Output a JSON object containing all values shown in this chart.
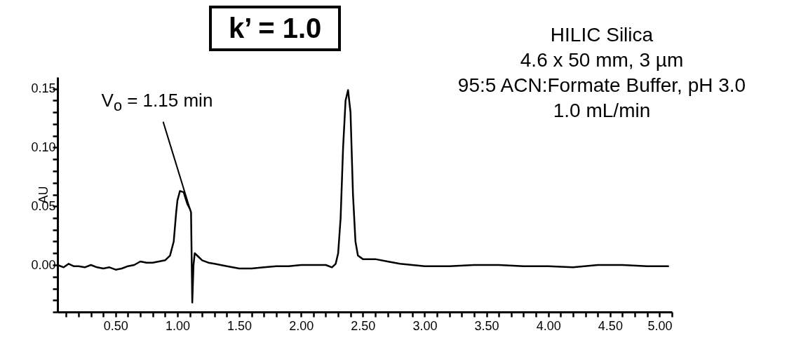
{
  "chart_data": {
    "type": "line",
    "ylabel": "AU",
    "x": [
      0.03,
      0.08,
      0.12,
      0.16,
      0.2,
      0.25,
      0.3,
      0.35,
      0.4,
      0.45,
      0.5,
      0.55,
      0.6,
      0.65,
      0.7,
      0.75,
      0.8,
      0.85,
      0.9,
      0.94,
      0.97,
      0.99,
      1.0,
      1.02,
      1.05,
      1.08,
      1.1,
      1.11,
      1.12,
      1.13,
      1.14,
      1.17,
      1.2,
      1.25,
      1.3,
      1.4,
      1.5,
      1.6,
      1.7,
      1.8,
      1.9,
      2.0,
      2.1,
      2.2,
      2.25,
      2.28,
      2.3,
      2.32,
      2.34,
      2.36,
      2.38,
      2.4,
      2.42,
      2.44,
      2.46,
      2.5,
      2.6,
      2.7,
      2.8,
      2.9,
      3.0,
      3.2,
      3.4,
      3.6,
      3.8,
      4.0,
      4.2,
      4.4,
      4.6,
      4.8,
      4.97
    ],
    "series": [
      {
        "color": "#000000",
        "values": [
          0.0,
          -0.002,
          0.001,
          -0.001,
          -0.001,
          -0.002,
          0.0,
          -0.002,
          -0.003,
          -0.002,
          -0.004,
          -0.003,
          -0.001,
          0.0,
          0.003,
          0.002,
          0.002,
          0.003,
          0.004,
          0.008,
          0.02,
          0.045,
          0.055,
          0.063,
          0.062,
          0.052,
          0.048,
          0.045,
          -0.032,
          0.0,
          0.01,
          0.007,
          0.004,
          0.002,
          0.001,
          -0.001,
          -0.003,
          -0.003,
          -0.002,
          -0.001,
          -0.001,
          0.0,
          0.0,
          0.0,
          -0.002,
          0.001,
          0.01,
          0.04,
          0.1,
          0.14,
          0.149,
          0.13,
          0.06,
          0.02,
          0.008,
          0.005,
          0.005,
          0.003,
          0.001,
          0.0,
          -0.001,
          -0.001,
          0.0,
          0.0,
          -0.001,
          -0.001,
          -0.002,
          0.0,
          0.0,
          -0.001,
          -0.001
        ]
      }
    ],
    "xlim": [
      0.03,
      5.0
    ],
    "xticks": [
      {
        "value": 0.1,
        "label": null
      },
      {
        "value": 0.2,
        "label": null
      },
      {
        "value": 0.3,
        "label": null
      },
      {
        "value": 0.4,
        "label": null
      },
      {
        "value": 0.5,
        "label": "0.50"
      },
      {
        "value": 0.6,
        "label": null
      },
      {
        "value": 0.7,
        "label": null
      },
      {
        "value": 0.8,
        "label": null
      },
      {
        "value": 0.9,
        "label": null
      },
      {
        "value": 1.0,
        "label": "1.00"
      },
      {
        "value": 1.1,
        "label": null
      },
      {
        "value": 1.2,
        "label": null
      },
      {
        "value": 1.3,
        "label": null
      },
      {
        "value": 1.4,
        "label": null
      },
      {
        "value": 1.5,
        "label": "1.50"
      },
      {
        "value": 1.6,
        "label": null
      },
      {
        "value": 1.7,
        "label": null
      },
      {
        "value": 1.8,
        "label": null
      },
      {
        "value": 1.9,
        "label": null
      },
      {
        "value": 2.0,
        "label": "2.00"
      },
      {
        "value": 2.1,
        "label": null
      },
      {
        "value": 2.2,
        "label": null
      },
      {
        "value": 2.3,
        "label": null
      },
      {
        "value": 2.4,
        "label": null
      },
      {
        "value": 2.5,
        "label": "2.50"
      },
      {
        "value": 2.6,
        "label": null
      },
      {
        "value": 2.7,
        "label": null
      },
      {
        "value": 2.8,
        "label": null
      },
      {
        "value": 2.9,
        "label": null
      },
      {
        "value": 3.0,
        "label": "3.00"
      },
      {
        "value": 3.1,
        "label": null
      },
      {
        "value": 3.2,
        "label": null
      },
      {
        "value": 3.3,
        "label": null
      },
      {
        "value": 3.4,
        "label": null
      },
      {
        "value": 3.5,
        "label": "3.50"
      },
      {
        "value": 3.6,
        "label": null
      },
      {
        "value": 3.7,
        "label": null
      },
      {
        "value": 3.8,
        "label": null
      },
      {
        "value": 3.9,
        "label": null
      },
      {
        "value": 4.0,
        "label": "4.00"
      },
      {
        "value": 4.1,
        "label": null
      },
      {
        "value": 4.2,
        "label": null
      },
      {
        "value": 4.3,
        "label": null
      },
      {
        "value": 4.4,
        "label": null
      },
      {
        "value": 4.5,
        "label": "4.50"
      },
      {
        "value": 4.6,
        "label": null
      },
      {
        "value": 4.7,
        "label": null
      },
      {
        "value": 4.8,
        "label": null
      },
      {
        "value": 4.9,
        "label": null
      },
      {
        "value": 5.0,
        "label": "5.00"
      }
    ],
    "ylim": [
      -0.04,
      0.16
    ],
    "yticks": [
      {
        "value": -0.04,
        "label": null
      },
      {
        "value": -0.03,
        "label": null
      },
      {
        "value": -0.02,
        "label": null
      },
      {
        "value": -0.01,
        "label": null
      },
      {
        "value": 0.0,
        "label": "0.00"
      },
      {
        "value": 0.01,
        "label": null
      },
      {
        "value": 0.02,
        "label": null
      },
      {
        "value": 0.03,
        "label": null
      },
      {
        "value": 0.04,
        "label": null
      },
      {
        "value": 0.05,
        "label": "0.05"
      },
      {
        "value": 0.06,
        "label": null
      },
      {
        "value": 0.07,
        "label": null
      },
      {
        "value": 0.08,
        "label": null
      },
      {
        "value": 0.09,
        "label": null
      },
      {
        "value": 0.1,
        "label": "0.10"
      },
      {
        "value": 0.11,
        "label": null
      },
      {
        "value": 0.12,
        "label": null
      },
      {
        "value": 0.13,
        "label": null
      },
      {
        "value": 0.14,
        "label": null
      },
      {
        "value": 0.15,
        "label": "0.15"
      }
    ],
    "annotations": [
      "k’ = 1.0",
      {
        "text": "V$_{o}$ = 1.15 min",
        "x": 1.1,
        "y": 0.048
      },
      "HILIC Silica",
      "4.6 x 50 mm, 3 µm",
      "95:5 ACN:Formate Buffer, pH 3.0",
      "1.0 mL/min"
    ],
    "grid": false,
    "legend": false,
    "marker": "none",
    "line_style": "solid"
  }
}
